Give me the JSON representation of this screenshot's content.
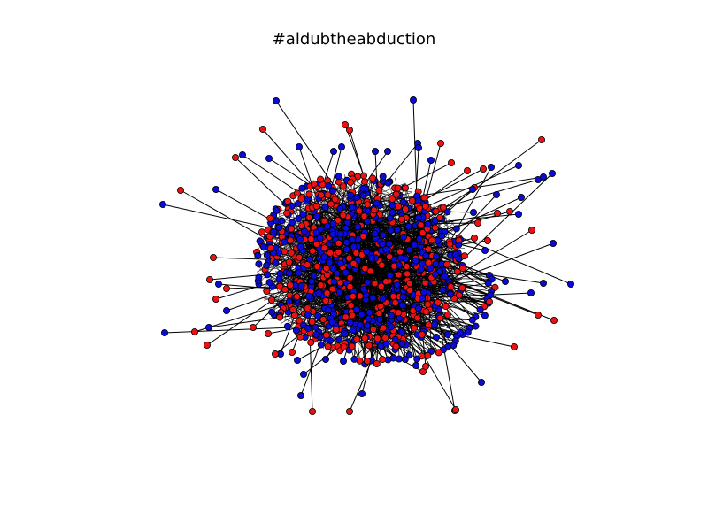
{
  "title": "#aldubtheabduction",
  "graph": {
    "type": "network",
    "node_colors": {
      "red": "#ee1111",
      "blue": "#0b0bd8"
    },
    "node_outline": "#000000",
    "edge_color": "#000000"
  }
}
